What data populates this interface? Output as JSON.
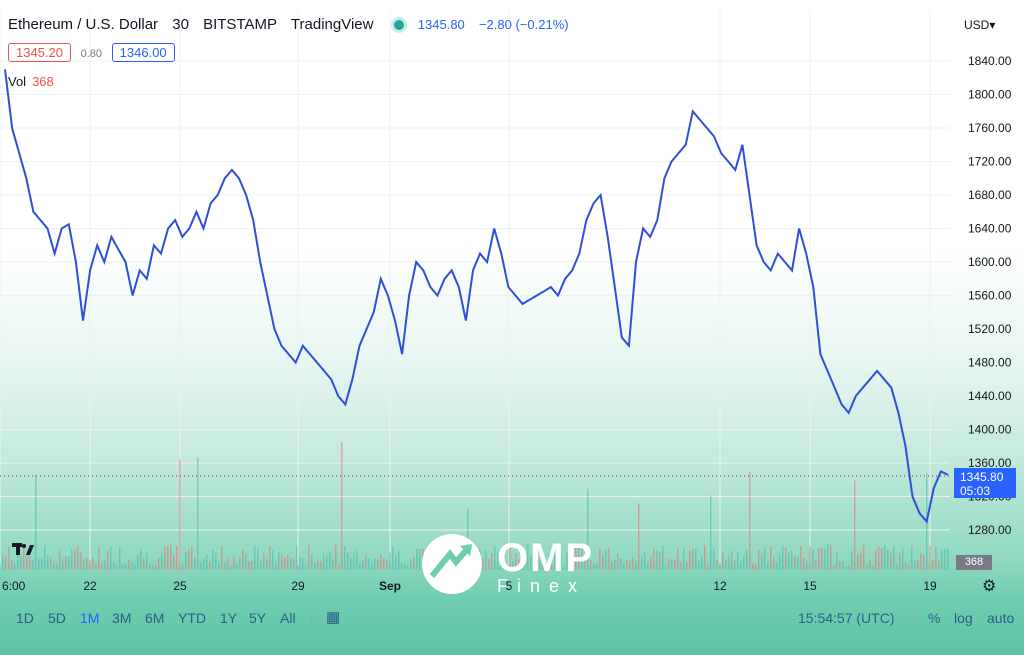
{
  "header": {
    "symbol": "Ethereum / U.S. Dollar",
    "interval": "30",
    "exchange": "BITSTAMP",
    "source": "TradingView",
    "last_price": "1345.80",
    "change": "−2.80 (−0.21%)"
  },
  "bid": "1345.20",
  "spread": "0.80",
  "ask": "1346.00",
  "volume": {
    "label": "Vol",
    "value": "368"
  },
  "currency": "USD",
  "last_tag": {
    "price": "1345.80",
    "countdown": "05:03"
  },
  "vol_tag": "368",
  "toolbar": {
    "ranges": [
      "1D",
      "5D",
      "1M",
      "3M",
      "6M",
      "YTD",
      "1Y",
      "5Y",
      "All"
    ],
    "active_range": "1M",
    "clock": "15:54:57 (UTC)",
    "percent": "%",
    "log": "log",
    "auto": "auto"
  },
  "watermark": {
    "name": "OMP",
    "sub": "Finex"
  },
  "colors": {
    "line": "#2e4fd6",
    "accent": "#2962ff",
    "bid": "#ef5350"
  },
  "chart_data": {
    "type": "line",
    "x_tick_labels": [
      "6:00",
      "22",
      "25",
      "29",
      "Sep",
      "5",
      "12",
      "15",
      "19"
    ],
    "y_tick_labels": [
      "1840.00",
      "1800.00",
      "1760.00",
      "1720.00",
      "1680.00",
      "1640.00",
      "1600.00",
      "1560.00",
      "1520.00",
      "1480.00",
      "1440.00",
      "1400.00",
      "1360.00",
      "1320.00",
      "1280.00"
    ],
    "ylim": [
      1260,
      1860
    ],
    "series": [
      {
        "values": [
          1830,
          1760,
          1730,
          1700,
          1660,
          1650,
          1640,
          1610,
          1640,
          1645,
          1600,
          1530,
          1590,
          1620,
          1600,
          1630,
          1615,
          1600,
          1560,
          1590,
          1580,
          1620,
          1610,
          1640,
          1650,
          1630,
          1640,
          1660,
          1640,
          1670,
          1680,
          1700,
          1710,
          1700,
          1680,
          1650,
          1600,
          1560,
          1520,
          1500,
          1490,
          1480,
          1500,
          1490,
          1480,
          1470,
          1460,
          1440,
          1430,
          1460,
          1500,
          1520,
          1540,
          1580,
          1560,
          1530,
          1490,
          1560,
          1600,
          1590,
          1570,
          1560,
          1580,
          1590,
          1570,
          1530,
          1590,
          1610,
          1600,
          1640,
          1610,
          1570,
          1560,
          1550,
          1555,
          1560,
          1565,
          1570,
          1560,
          1580,
          1590,
          1610,
          1650,
          1670,
          1680,
          1630,
          1570,
          1510,
          1500,
          1600,
          1640,
          1630,
          1650,
          1700,
          1720,
          1730,
          1740,
          1780,
          1770,
          1760,
          1750,
          1730,
          1720,
          1710,
          1740,
          1680,
          1620,
          1600,
          1590,
          1610,
          1600,
          1590,
          1640,
          1610,
          1570,
          1490,
          1470,
          1450,
          1430,
          1420,
          1440,
          1450,
          1460,
          1470,
          1460,
          1450,
          1420,
          1380,
          1320,
          1300,
          1290,
          1330,
          1350,
          1345.8
        ]
      }
    ],
    "grid": true,
    "last_value": 1345.8
  }
}
